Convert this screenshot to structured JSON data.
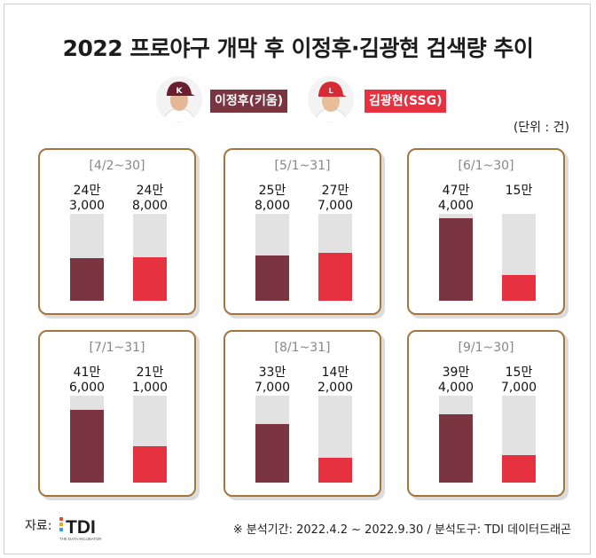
{
  "title": "2022 프로야구 개막 후 이정후·김광현 검색량 추이",
  "unit": "(단위 : 건)",
  "colors": {
    "lee": "#7b3541",
    "kim": "#e63240",
    "bar_bg": "#e2e2e2",
    "panel_border": "#a6753c"
  },
  "legend": [
    {
      "name": "이정후(키움)",
      "color": "#7b3541",
      "icon": "kiwoom-player-photo"
    },
    {
      "name": "김광현(SSG)",
      "color": "#e63240",
      "icon": "ssg-player-photo"
    }
  ],
  "chart_data": {
    "type": "bar",
    "unit": "건",
    "series_names": [
      "이정후(키움)",
      "김광현(SSG)"
    ],
    "panels": [
      {
        "period": "[4/2~30]",
        "values": [
          243000,
          248000
        ],
        "labels": [
          [
            "24만",
            "3,000"
          ],
          [
            "24만",
            "8,000"
          ]
        ]
      },
      {
        "period": "[5/1~31]",
        "values": [
          258000,
          277000
        ],
        "labels": [
          [
            "25만",
            "8,000"
          ],
          [
            "27만",
            "7,000"
          ]
        ]
      },
      {
        "period": "[6/1~30]",
        "values": [
          474000,
          150000
        ],
        "labels": [
          [
            "47만",
            "4,000"
          ],
          [
            "15만",
            ""
          ]
        ]
      },
      {
        "period": "[7/1~31]",
        "values": [
          416000,
          211000
        ],
        "labels": [
          [
            "41만",
            "6,000"
          ],
          [
            "21만",
            "1,000"
          ]
        ]
      },
      {
        "period": "[8/1~31]",
        "values": [
          337000,
          142000
        ],
        "labels": [
          [
            "33만",
            "7,000"
          ],
          [
            "14만",
            "2,000"
          ]
        ]
      },
      {
        "period": "[9/1~30]",
        "values": [
          394000,
          157000
        ],
        "labels": [
          [
            "39만",
            "4,000"
          ],
          [
            "15만",
            "7,000"
          ]
        ]
      }
    ]
  },
  "footer": {
    "source_label": "자료:",
    "logo_text": "TDI",
    "logo_subtext": "THE DATA INCUBATOR",
    "note": "※ 분석기간: 2022.4.2 ~  2022.9.30  / 분석도구: TDI 데이터드래곤"
  }
}
